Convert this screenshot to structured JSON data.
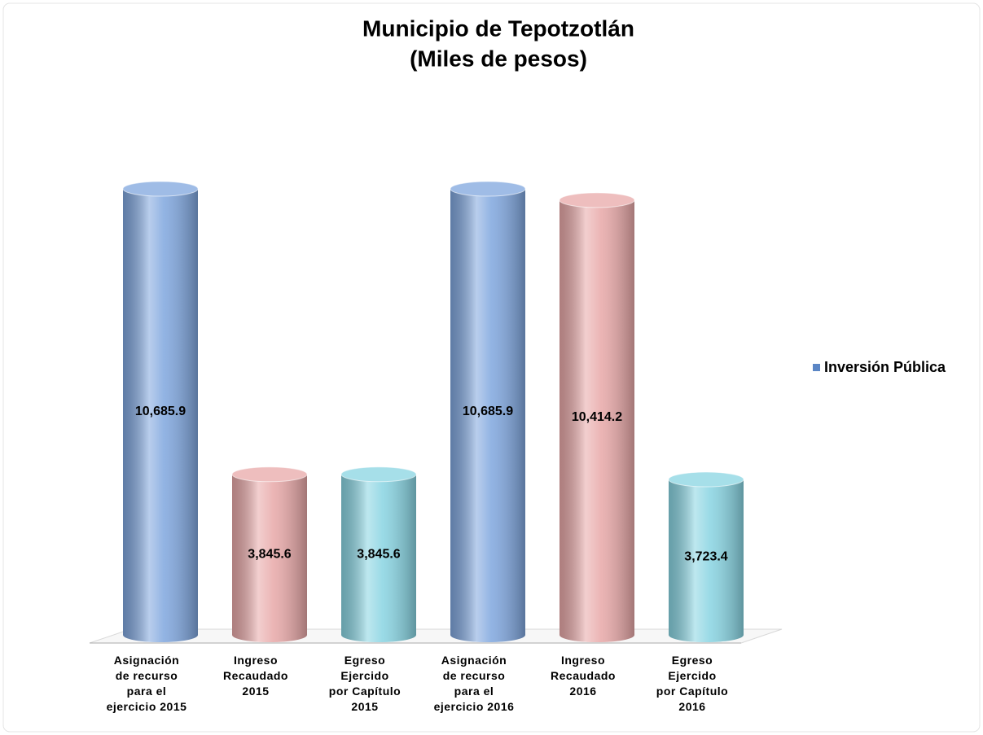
{
  "chart_data": {
    "type": "bar3d",
    "title": [
      "Municipio de Tepotzotlán",
      "(Miles de pesos)"
    ],
    "categories": [
      [
        "Asignación",
        "de recurso",
        "para el",
        "ejercicio 2015"
      ],
      [
        "Ingreso",
        "Recaudado",
        "2015"
      ],
      [
        "Egreso",
        "Ejercido",
        "por Capítulo",
        "2015"
      ],
      [
        "Asignación",
        "de recurso",
        "para el",
        "ejercicio 2016"
      ],
      [
        "Ingreso",
        "Recaudado",
        "2016"
      ],
      [
        "Egreso",
        "Ejercido",
        "por Capítulo",
        "2016"
      ]
    ],
    "series": [
      {
        "name": "Inversión Pública",
        "values": [
          10685.9,
          3845.6,
          3845.6,
          10685.9,
          10414.2,
          3723.4
        ],
        "value_labels": [
          "10,685.9",
          "3,845.6",
          "3,845.6",
          "10,685.9",
          "10,414.2",
          "3,723.4"
        ],
        "colors": [
          "#7fa6de",
          "#e8a8a8",
          "#88d4e2",
          "#7fa6de",
          "#e8a8a8",
          "#88d4e2"
        ],
        "legend_color": "#5b86c5"
      }
    ],
    "legend": "right"
  }
}
